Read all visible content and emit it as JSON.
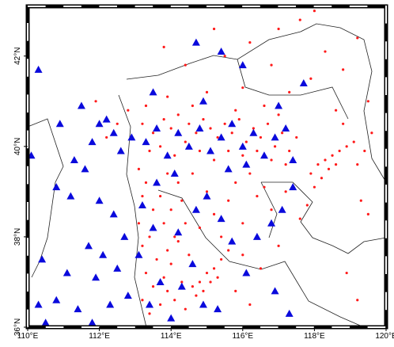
{
  "chart_data": {
    "type": "scatter",
    "xlim": [
      110,
      120
    ],
    "ylim": [
      36,
      43.1
    ],
    "xticks": [
      {
        "value": 110,
        "label": "110°E"
      },
      {
        "value": 112,
        "label": "112°E"
      },
      {
        "value": 114,
        "label": "114°E"
      },
      {
        "value": 116,
        "label": "116°E"
      },
      {
        "value": 118,
        "label": "118°E"
      },
      {
        "value": 120,
        "label": "120°E"
      }
    ],
    "yticks": [
      {
        "value": 36,
        "label": "36°N"
      },
      {
        "value": 38,
        "label": "38°N"
      },
      {
        "value": 40,
        "label": "40°N"
      },
      {
        "value": 42,
        "label": "42°N"
      }
    ],
    "series": [
      {
        "color": "#ff1a1a",
        "marker": "circle",
        "x": [
          113.2,
          113.5,
          113.8,
          114.0,
          114.2,
          114.5,
          114.7,
          114.9,
          115.1,
          115.3,
          115.5,
          115.7,
          115.9,
          116.1,
          116.3,
          116.5,
          116.7,
          116.9,
          117.1,
          117.3,
          117.5,
          113.4,
          113.7,
          114.1,
          114.4,
          114.8,
          115.2,
          115.6,
          116.0,
          116.4,
          116.8,
          117.2,
          113.3,
          114.6,
          115.8,
          116.6,
          117.0,
          113.9,
          115.0,
          115.5,
          116.2,
          117.0,
          117.6,
          116.8,
          117.9,
          118.3,
          118.8,
          119.2,
          119.5,
          118.6,
          115.2,
          114.4,
          113.8,
          118.0,
          117.3,
          116.0,
          117.9,
          118.1,
          118.3,
          118.5,
          118.7,
          118.9,
          119.1,
          118.2,
          118.4,
          118.6,
          118.0,
          117.8,
          117.6,
          119.4,
          119.6,
          119.2,
          118.8,
          119.3,
          119.5,
          118.9,
          119.2,
          113.1,
          113.3,
          113.2,
          113.5,
          113.1,
          113.4,
          113.2,
          113.6,
          113.3,
          113.5,
          113.2,
          113.4,
          113.7,
          113.9,
          113.8,
          114.0,
          113.9,
          114.1,
          113.8,
          114.0,
          113.7,
          114.2,
          113.9,
          114.3,
          114.4,
          114.2,
          114.5,
          114.3,
          114.1,
          114.4,
          114.6,
          114.8,
          115.0,
          115.2,
          115.4,
          115.6,
          114.7,
          114.9,
          115.1,
          115.3,
          115.2,
          115.6,
          116.0,
          116.4,
          116.8,
          117.2,
          115.8,
          116.2,
          116.6,
          114.8,
          115.4,
          116.0,
          116.5,
          117.0,
          115.8,
          116.2,
          114.6,
          115.0,
          112.5,
          112.8,
          111.9,
          112.2
        ],
        "y": [
          40.5,
          40.3,
          40.6,
          40.4,
          40.7,
          40.5,
          40.3,
          40.6,
          40.4,
          40.2,
          40.5,
          40.3,
          40.6,
          40.1,
          40.4,
          40.2,
          40.5,
          40.0,
          40.3,
          39.9,
          40.2,
          39.9,
          40.0,
          39.8,
          40.1,
          39.9,
          39.7,
          39.9,
          39.8,
          39.9,
          39.7,
          39.6,
          40.9,
          40.9,
          40.8,
          40.9,
          40.7,
          41.1,
          41.2,
          42.0,
          42.3,
          42.6,
          42.8,
          41.8,
          41.5,
          42.1,
          41.7,
          42.4,
          41.0,
          40.8,
          42.6,
          41.8,
          42.2,
          43.0,
          41.2,
          41.3,
          39.4,
          39.6,
          39.7,
          39.8,
          39.9,
          40.0,
          40.1,
          39.3,
          39.5,
          39.6,
          39.1,
          38.7,
          38.4,
          39.9,
          40.3,
          39.6,
          40.5,
          38.8,
          38.5,
          37.2,
          36.6,
          39.5,
          39.2,
          38.9,
          38.6,
          38.3,
          38.0,
          37.8,
          37.5,
          37.2,
          36.9,
          36.6,
          36.3,
          36.5,
          36.8,
          37.1,
          37.4,
          37.7,
          38.0,
          38.3,
          38.6,
          38.9,
          39.2,
          39.4,
          38.8,
          38.3,
          37.9,
          37.6,
          37.0,
          36.6,
          36.4,
          36.9,
          37.0,
          37.2,
          37.3,
          37.5,
          37.7,
          36.7,
          36.8,
          37.0,
          37.1,
          38.5,
          38.8,
          38.3,
          38.9,
          38.6,
          39.0,
          39.2,
          39.4,
          39.1,
          38.2,
          38.0,
          37.6,
          37.3,
          37.8,
          36.8,
          36.5,
          39.4,
          39.0,
          40.5,
          40.8,
          41.0,
          40.2
        ]
      },
      {
        "color": "#0a0adc",
        "marker": "triangle",
        "x": [
          110.3,
          110.1,
          111.3,
          111.5,
          110.9,
          111.8,
          112.0,
          112.2,
          112.4,
          112.9,
          112.6,
          111.6,
          110.8,
          111.2,
          112.0,
          112.4,
          112.7,
          112.1,
          111.7,
          110.4,
          111.1,
          111.9,
          112.5,
          112.8,
          110.8,
          110.3,
          111.4,
          111.8,
          112.3,
          110.5,
          113.3,
          113.6,
          113.9,
          114.2,
          114.5,
          114.8,
          115.1,
          115.4,
          115.7,
          116.0,
          116.3,
          116.6,
          116.9,
          117.2,
          117.4,
          115.6,
          116.1,
          114.9,
          116.0,
          114.7,
          115.4,
          113.5,
          117.0,
          117.7,
          113.2,
          113.5,
          113.1,
          113.7,
          113.4,
          114.0,
          114.3,
          114.6,
          114.2,
          114.7,
          115.0,
          115.4,
          115.7,
          116.1,
          116.4,
          116.8,
          117.1,
          117.4,
          116.9,
          115.3,
          117.3,
          114.9,
          113.6,
          114.1
        ],
        "y": [
          41.7,
          39.8,
          39.7,
          40.9,
          40.5,
          40.1,
          40.5,
          40.6,
          40.3,
          40.2,
          39.9,
          39.5,
          39.1,
          38.9,
          38.8,
          38.5,
          38.0,
          37.6,
          37.8,
          37.5,
          37.2,
          37.1,
          37.3,
          36.7,
          36.6,
          36.5,
          36.4,
          36.1,
          36.5,
          36.1,
          40.1,
          40.4,
          39.8,
          40.3,
          40.0,
          40.4,
          39.9,
          40.2,
          40.5,
          40.0,
          40.3,
          39.8,
          40.2,
          40.4,
          39.7,
          39.5,
          39.6,
          41.0,
          41.8,
          42.3,
          42.1,
          41.2,
          40.9,
          41.4,
          38.7,
          38.2,
          37.6,
          37.0,
          36.5,
          36.2,
          36.9,
          37.4,
          38.1,
          38.6,
          38.9,
          38.4,
          37.9,
          37.2,
          38.0,
          38.3,
          38.6,
          39.1,
          36.8,
          36.4,
          36.3,
          36.5,
          39.2,
          39.4
        ]
      }
    ]
  }
}
